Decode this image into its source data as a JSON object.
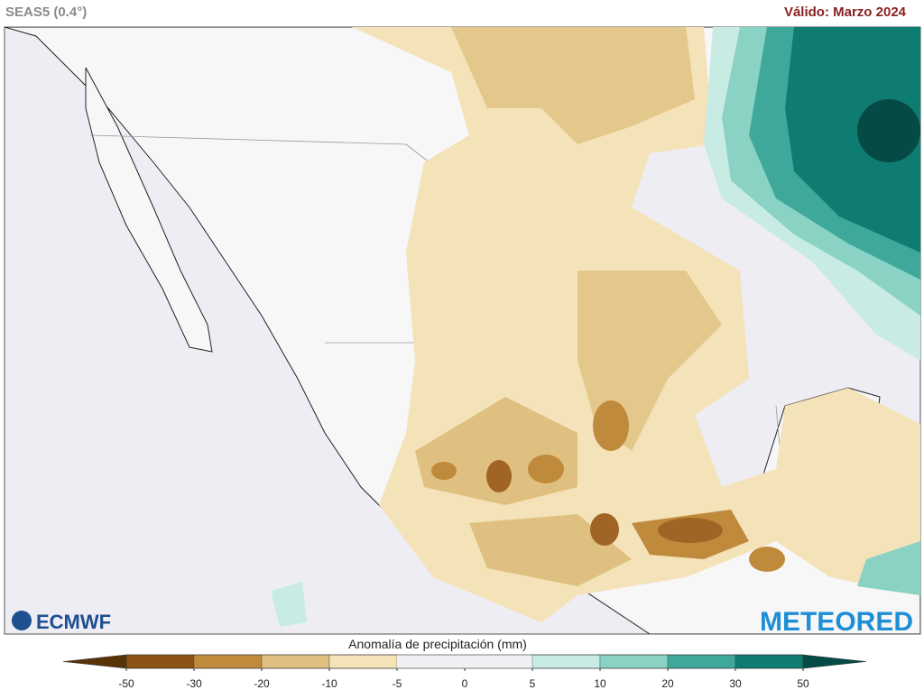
{
  "header": {
    "model": "SEAS5 (0.4°)",
    "valid": "Válido: Marzo 2024"
  },
  "logos": {
    "left": "ECMWF",
    "right": "METEORED"
  },
  "colorbar": {
    "label": "Anomalía de precipitación (mm)",
    "ticks": [
      -50,
      -30,
      -20,
      -10,
      -5,
      0,
      5,
      10,
      20,
      30,
      50
    ],
    "under_color": "#5a3208",
    "colors": [
      "#8c5414",
      "#c08a3c",
      "#e0c080",
      "#f4e2b8",
      "#f0eff4",
      "#f0eff4",
      "#c8ece4",
      "#8ad2c4",
      "#3ea89a",
      "#0e7c70"
    ],
    "over_color": "#054a44"
  }
}
